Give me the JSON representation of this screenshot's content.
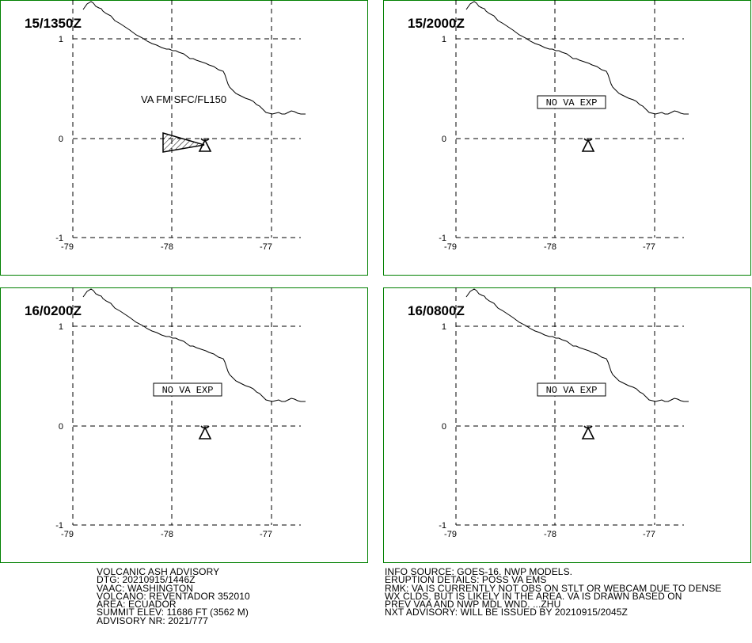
{
  "panels": [
    {
      "time": "15/1350Z",
      "label_type": "ash",
      "va_text": "VA FM SFC/FL150"
    },
    {
      "time": "15/2000Z",
      "label_type": "none",
      "va_text": "NO VA EXP"
    },
    {
      "time": "16/0200Z",
      "label_type": "none",
      "va_text": "NO VA EXP"
    },
    {
      "time": "16/0800Z",
      "label_type": "none",
      "va_text": "NO VA EXP"
    }
  ],
  "axes": {
    "lon_labels": [
      "-79",
      "-78",
      "-77"
    ],
    "lat_labels": [
      "1",
      "0",
      "-1"
    ]
  },
  "colors": {
    "frame": "#008000",
    "lines": "#000000"
  },
  "icons": {
    "volcano": "volcano-icon"
  },
  "advisory_left": [
    "VOLCANIC ASH ADVISORY",
    "DTG: 20210915/1446Z",
    "VAAC: WASHINGTON",
    "VOLCANO: REVENTADOR 352010",
    "AREA: ECUADOR",
    "SUMMIT ELEV: 11686 FT (3562 M)",
    "ADVISORY NR: 2021/777"
  ],
  "advisory_right": [
    "INFO SOURCE: GOES-16. NWP MODELS.",
    "ERUPTION DETAILS: POSS VA EMS",
    "RMK: VA IS CURRENTLY NOT OBS ON STLT OR WEBCAM DUE TO DENSE",
    "WX CLDS, BUT IS LIKELY IN THE AREA. VA IS DRAWN BASED ON",
    "PREV VAA AND NWP MDL WND. ...ZHU",
    "NXT ADVISORY: WILL BE ISSUED BY 20210915/2045Z"
  ]
}
